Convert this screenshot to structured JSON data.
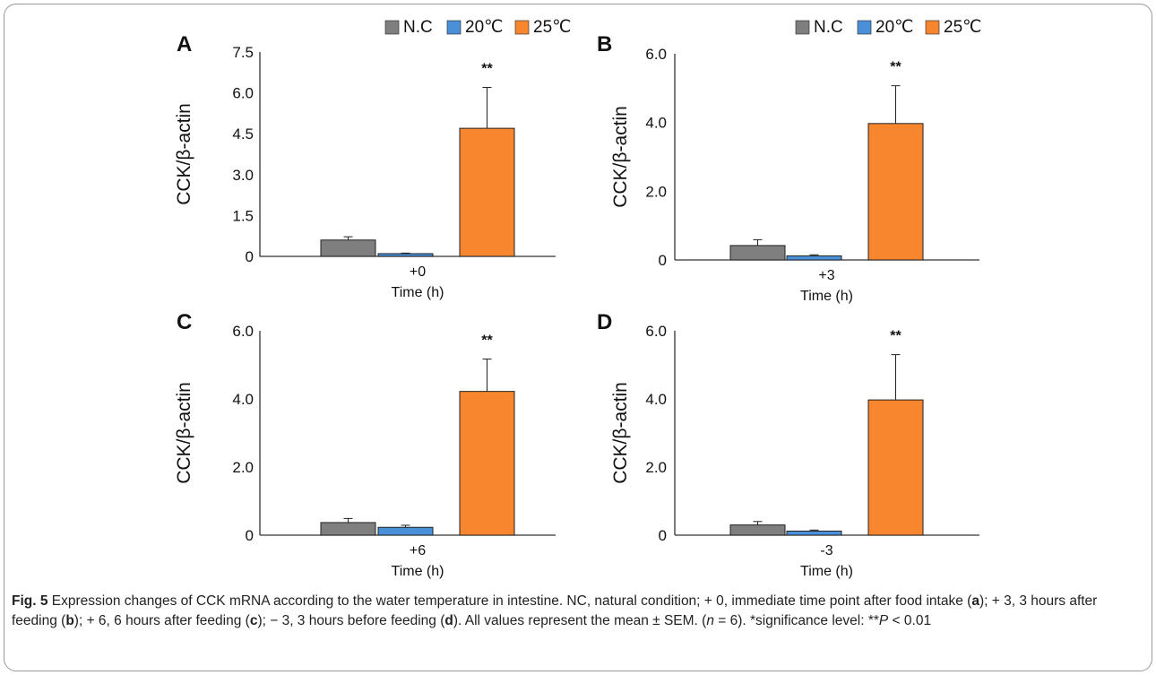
{
  "legend": [
    {
      "name": "N.C",
      "color": "#7f7f7f"
    },
    {
      "name": "20℃",
      "color": "#4a90d9"
    },
    {
      "name": "25℃",
      "color": "#f7862e"
    }
  ],
  "chart_data": [
    {
      "panel": "A",
      "type": "bar",
      "categories": [
        "+0"
      ],
      "series": [
        {
          "name": "N.C",
          "values": [
            0.6
          ],
          "error": [
            0.12
          ]
        },
        {
          "name": "20℃",
          "values": [
            0.1
          ],
          "error": [
            0.02
          ]
        },
        {
          "name": "25℃",
          "values": [
            4.7
          ],
          "error": [
            1.5
          ]
        }
      ],
      "annotation": "**",
      "ylabel": "CCK/β-actin",
      "xlabel": "Time (h)",
      "ylim": [
        0,
        7.5
      ],
      "yticks": [
        "0",
        "1.5",
        "3.0",
        "4.5",
        "6.0",
        "7.5"
      ],
      "legend_position": "top"
    },
    {
      "panel": "B",
      "type": "bar",
      "categories": [
        "+3"
      ],
      "series": [
        {
          "name": "N.C",
          "values": [
            0.42
          ],
          "error": [
            0.17
          ]
        },
        {
          "name": "20℃",
          "values": [
            0.12
          ],
          "error": [
            0.03
          ]
        },
        {
          "name": "25℃",
          "values": [
            3.97
          ],
          "error": [
            1.1
          ]
        }
      ],
      "annotation": "**",
      "ylabel": "CCK/β-actin",
      "xlabel": "Time (h)",
      "ylim": [
        0,
        6.0
      ],
      "yticks": [
        "0",
        "2.0",
        "4.0",
        "6.0"
      ],
      "legend_position": "top"
    },
    {
      "panel": "C",
      "type": "bar",
      "categories": [
        "+6"
      ],
      "series": [
        {
          "name": "N.C",
          "values": [
            0.37
          ],
          "error": [
            0.12
          ]
        },
        {
          "name": "20℃",
          "values": [
            0.23
          ],
          "error": [
            0.06
          ]
        },
        {
          "name": "25℃",
          "values": [
            4.22
          ],
          "error": [
            0.95
          ]
        }
      ],
      "annotation": "**",
      "ylabel": "CCK/β-actin",
      "xlabel": "Time (h)",
      "ylim": [
        0,
        6.0
      ],
      "yticks": [
        "0",
        "2.0",
        "4.0",
        "6.0"
      ]
    },
    {
      "panel": "D",
      "type": "bar",
      "categories": [
        "-3"
      ],
      "series": [
        {
          "name": "N.C",
          "values": [
            0.3
          ],
          "error": [
            0.1
          ]
        },
        {
          "name": "20℃",
          "values": [
            0.12
          ],
          "error": [
            0.03
          ]
        },
        {
          "name": "25℃",
          "values": [
            3.97
          ],
          "error": [
            1.33
          ]
        }
      ],
      "annotation": "**",
      "ylabel": "CCK/β-actin",
      "xlabel": "Time (h)",
      "ylim": [
        0,
        6.0
      ],
      "yticks": [
        "0",
        "2.0",
        "4.0",
        "6.0"
      ]
    }
  ],
  "caption": {
    "label": "Fig. 5",
    "text_1": " Expression changes of CCK mRNA according to the water temperature in intestine. NC, natural condition; + 0, immediate time point after food intake (",
    "a": "a",
    "text_2": "); + 3, 3 hours after feeding (",
    "b": "b",
    "text_3": "); + 6, 6 hours after feeding (",
    "c": "c",
    "text_4": "); − 3, 3 hours before feeding (",
    "d": "d",
    "text_5": "). All values represent the mean ± SEM. (",
    "n": "n",
    "text_6": " = 6). *significance level: **",
    "p": "P",
    "text_7": " < 0.01"
  }
}
